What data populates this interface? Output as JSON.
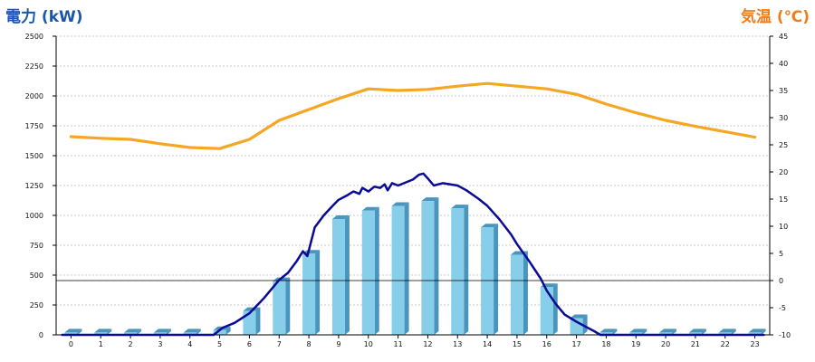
{
  "chart_data": {
    "type": "bar",
    "title_left": "電力 (kW)",
    "title_right": "気温 (℃)",
    "categories": [
      "0",
      "1",
      "2",
      "3",
      "4",
      "5",
      "6",
      "7",
      "8",
      "9",
      "10",
      "11",
      "12",
      "13",
      "14",
      "15",
      "16",
      "17",
      "18",
      "19",
      "20",
      "21",
      "22",
      "23"
    ],
    "y_left": {
      "ylim": [
        0,
        2500
      ],
      "ticks": [
        0,
        250,
        500,
        750,
        1000,
        1250,
        1500,
        1750,
        2000,
        2250,
        2500
      ]
    },
    "y_right": {
      "ylim": [
        -10,
        45
      ],
      "ticks": [
        -10,
        -5,
        0,
        5,
        10,
        15,
        20,
        25,
        30,
        35,
        40,
        45
      ]
    },
    "grid": true,
    "series": [
      {
        "kind": "bar3d",
        "axis": "left",
        "values": [
          20,
          20,
          20,
          20,
          20,
          40,
          200,
          450,
          680,
          970,
          1040,
          1080,
          1120,
          1060,
          900,
          670,
          400,
          140,
          20,
          20,
          20,
          20,
          20,
          20
        ]
      },
      {
        "kind": "line",
        "axis": "left",
        "points": [
          [
            -0.3,
            0
          ],
          [
            0,
            0
          ],
          [
            1,
            0
          ],
          [
            2,
            0
          ],
          [
            3,
            0
          ],
          [
            4,
            0
          ],
          [
            4.8,
            0
          ],
          [
            5.1,
            60
          ],
          [
            5.5,
            100
          ],
          [
            6,
            180
          ],
          [
            6.5,
            310
          ],
          [
            7,
            460
          ],
          [
            7.3,
            520
          ],
          [
            7.6,
            620
          ],
          [
            7.8,
            700
          ],
          [
            7.95,
            660
          ],
          [
            8.2,
            900
          ],
          [
            8.5,
            1000
          ],
          [
            8.8,
            1080
          ],
          [
            9,
            1130
          ],
          [
            9.3,
            1170
          ],
          [
            9.5,
            1200
          ],
          [
            9.7,
            1180
          ],
          [
            9.8,
            1230
          ],
          [
            10,
            1200
          ],
          [
            10.2,
            1240
          ],
          [
            10.4,
            1230
          ],
          [
            10.55,
            1260
          ],
          [
            10.65,
            1210
          ],
          [
            10.8,
            1270
          ],
          [
            11,
            1250
          ],
          [
            11.2,
            1270
          ],
          [
            11.5,
            1300
          ],
          [
            11.7,
            1340
          ],
          [
            11.85,
            1350
          ],
          [
            12,
            1310
          ],
          [
            12.2,
            1250
          ],
          [
            12.5,
            1270
          ],
          [
            13,
            1250
          ],
          [
            13.3,
            1210
          ],
          [
            13.7,
            1140
          ],
          [
            14,
            1080
          ],
          [
            14.4,
            970
          ],
          [
            14.8,
            840
          ],
          [
            15,
            760
          ],
          [
            15.4,
            620
          ],
          [
            15.8,
            470
          ],
          [
            16,
            370
          ],
          [
            16.3,
            260
          ],
          [
            16.6,
            170
          ],
          [
            17,
            110
          ],
          [
            17.3,
            70
          ],
          [
            17.6,
            30
          ],
          [
            17.8,
            0
          ],
          [
            18,
            0
          ],
          [
            19,
            0
          ],
          [
            20,
            0
          ],
          [
            21,
            0
          ],
          [
            22,
            0
          ],
          [
            23,
            0
          ],
          [
            23.3,
            0
          ]
        ]
      },
      {
        "kind": "line",
        "axis": "right",
        "points": [
          [
            0,
            26.5
          ],
          [
            1,
            26.2
          ],
          [
            2,
            26
          ],
          [
            3,
            25.2
          ],
          [
            4,
            24.5
          ],
          [
            5,
            24.3
          ],
          [
            6,
            26
          ],
          [
            7,
            29.5
          ],
          [
            8,
            31.5
          ],
          [
            9,
            33.5
          ],
          [
            10,
            35.3
          ],
          [
            11,
            35
          ],
          [
            12,
            35.2
          ],
          [
            13,
            35.8
          ],
          [
            14,
            36.3
          ],
          [
            15,
            35.8
          ],
          [
            16,
            35.3
          ],
          [
            17,
            34.3
          ],
          [
            18,
            32.5
          ],
          [
            19,
            30.9
          ],
          [
            20,
            29.5
          ],
          [
            21,
            28.4
          ],
          [
            22,
            27.4
          ],
          [
            23,
            26.4
          ]
        ]
      }
    ]
  },
  "colors": {
    "left_title": "#1a56b0",
    "right_title": "#f07d1a",
    "bar_front": "#87ceeb",
    "bar_side": "#4a95bd",
    "bar_top": "#b7e3f4",
    "power_line": "#0a0a96",
    "temp_line": "#f5a623",
    "grid": "#bbbbbb",
    "axis": "#000000",
    "zero_temp_line": "#000000"
  }
}
